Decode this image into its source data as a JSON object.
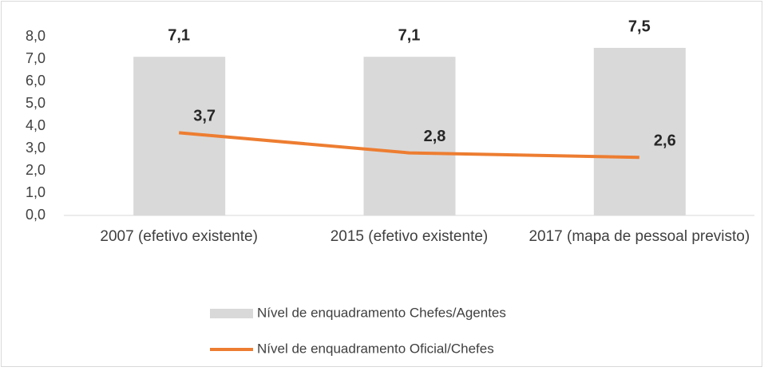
{
  "chart_data": {
    "type": "combo",
    "categories": [
      "2007 (efetivo existente)",
      "2015 (efetivo existente)",
      "2017 (mapa de pessoal previsto)"
    ],
    "series": [
      {
        "name": "Nível de enquadramento Chefes/Agentes",
        "type": "bar",
        "color": "#d9d9d9",
        "values": [
          7.1,
          7.1,
          7.5
        ],
        "value_labels": [
          "7,1",
          "7,1",
          "7,5"
        ]
      },
      {
        "name": "Nível de enquadramento Oficial/Chefes",
        "type": "line",
        "color": "#ed7d31",
        "values": [
          3.7,
          2.8,
          2.6
        ],
        "value_labels": [
          "3,7",
          "2,8",
          "2,6"
        ]
      }
    ],
    "ylim": [
      0,
      8
    ],
    "yticks": [
      {
        "value": 0,
        "label": "0,0"
      },
      {
        "value": 1,
        "label": "1,0"
      },
      {
        "value": 2,
        "label": "2,0"
      },
      {
        "value": 3,
        "label": "3,0"
      },
      {
        "value": 4,
        "label": "4,0"
      },
      {
        "value": 5,
        "label": "5,0"
      },
      {
        "value": 6,
        "label": "6,0"
      },
      {
        "value": 7,
        "label": "7,0"
      },
      {
        "value": 8,
        "label": "8,0"
      }
    ],
    "legend": "bottom"
  }
}
